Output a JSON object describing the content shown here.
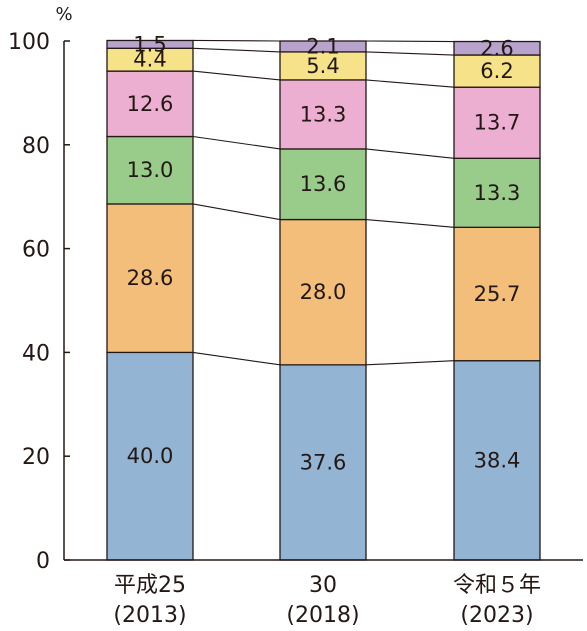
{
  "chart_data": {
    "type": "bar",
    "stacked": true,
    "unit": "%",
    "ylim": [
      0,
      100
    ],
    "yticks": [
      "0",
      "20",
      "40",
      "60",
      "80",
      "100"
    ],
    "categories": [
      {
        "line1": "平成25",
        "line2": "(2013)"
      },
      {
        "line1": "30",
        "line2": "(2018)"
      },
      {
        "line1": "令和５年",
        "line2": "(2023)"
      }
    ],
    "series": [
      {
        "color": "#93b4d3",
        "values": [
          40.0,
          37.6,
          38.4
        ],
        "labels": [
          "40.0",
          "37.6",
          "38.4"
        ]
      },
      {
        "color": "#f3be7a",
        "values": [
          28.6,
          28.0,
          25.7
        ],
        "labels": [
          "28.6",
          "28.0",
          "25.7"
        ]
      },
      {
        "color": "#99cb8b",
        "values": [
          13.0,
          13.6,
          13.3
        ],
        "labels": [
          "13.0",
          "13.6",
          "13.3"
        ]
      },
      {
        "color": "#ecafd1",
        "values": [
          12.6,
          13.3,
          13.7
        ],
        "labels": [
          "12.6",
          "13.3",
          "13.7"
        ]
      },
      {
        "color": "#f6e389",
        "values": [
          4.4,
          5.4,
          6.2
        ],
        "labels": [
          "4.4",
          "5.4",
          "6.2"
        ]
      },
      {
        "color": "#b8a3cc",
        "values": [
          1.5,
          2.1,
          2.6
        ],
        "labels": [
          "1.5",
          "2.1",
          "2.6"
        ]
      }
    ],
    "legend": "none",
    "grid": false
  }
}
